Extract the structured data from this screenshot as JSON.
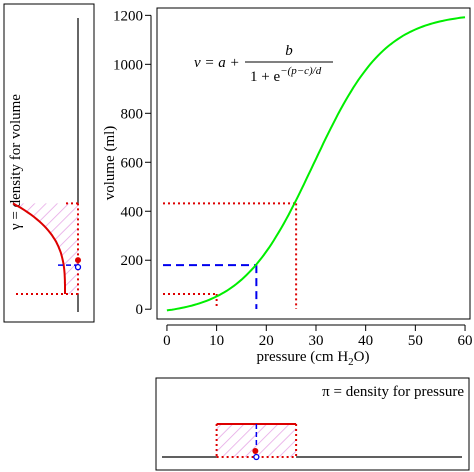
{
  "chart_data": {
    "type": "line",
    "equation": {
      "lhs": "v = a +",
      "numerator": "b",
      "denominator_base": "1 + e",
      "exponent": "−(p−c)/d"
    },
    "xlabel": "pressure (cm H",
    "xlabel_sub": "2",
    "xlabel_tail": "O)",
    "ylabel": "volume (ml)",
    "xlim": [
      -2,
      61
    ],
    "ylim": [
      -40,
      1230
    ],
    "xticks": [
      0,
      10,
      20,
      30,
      40,
      50,
      60
    ],
    "yticks": [
      0,
      200,
      400,
      600,
      800,
      1000,
      1200
    ],
    "curve_params": {
      "a": -25,
      "b": 1235,
      "c": 29.5,
      "d": 7.2
    },
    "series": [
      {
        "color": "#00ee00"
      }
    ],
    "red_guides": {
      "x": [
        10,
        26
      ],
      "y": [
        62,
        432
      ],
      "color": "#dd0000"
    },
    "blue_guide": {
      "x": 18,
      "y": 180,
      "color": "#0000ee"
    },
    "left_panel_label": "γ = density for volume",
    "bottom_panel_label": "π = density for pressure"
  }
}
